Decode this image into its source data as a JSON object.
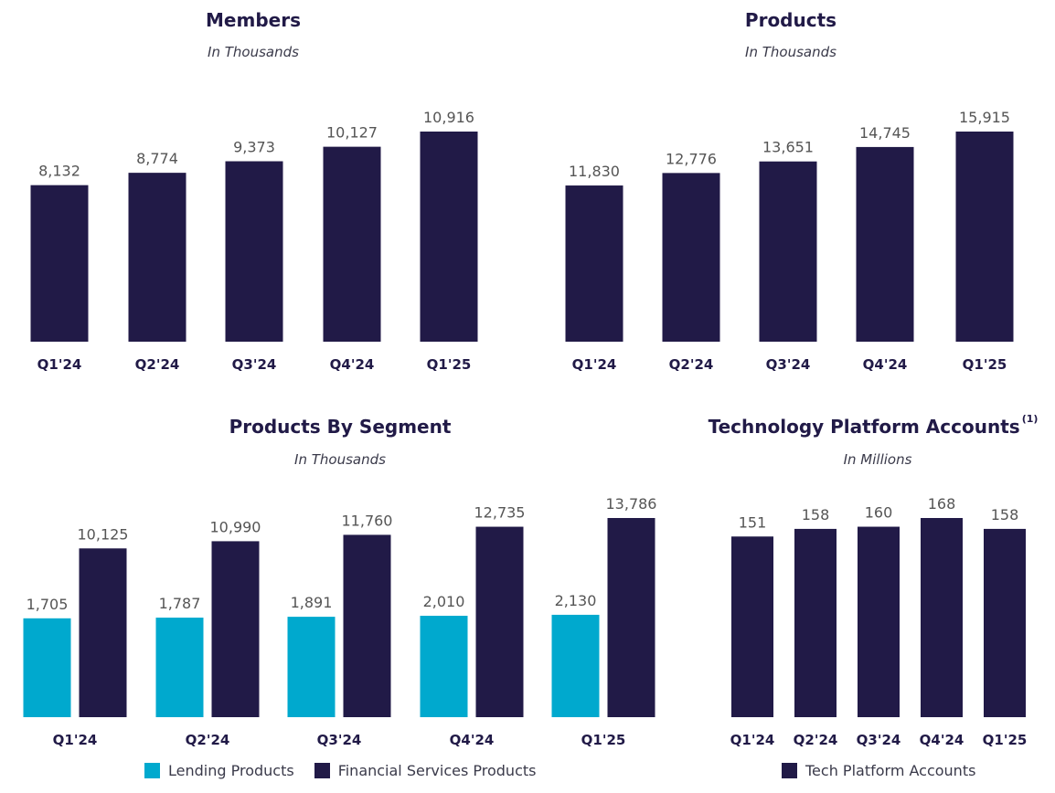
{
  "colors": {
    "navy": "#211A47",
    "teal": "#00A9CE",
    "label": "#555555",
    "axis": "#211A47"
  },
  "chart_data": [
    {
      "id": "members",
      "type": "bar",
      "title": "Members",
      "subtitle": "In Thousands",
      "categories": [
        "Q1'24",
        "Q2'24",
        "Q3'24",
        "Q4'24",
        "Q1'25"
      ],
      "series": [
        {
          "name": "Members",
          "color": "#211A47",
          "values": [
            8132,
            8774,
            9373,
            10127,
            10916
          ],
          "labels": [
            "8,132",
            "8,774",
            "9,373",
            "10,127",
            "10,916"
          ]
        }
      ],
      "xlabel": "",
      "ylabel": "",
      "legend": "none"
    },
    {
      "id": "products",
      "type": "bar",
      "title": "Products",
      "subtitle": "In Thousands",
      "categories": [
        "Q1'24",
        "Q2'24",
        "Q3'24",
        "Q4'24",
        "Q1'25"
      ],
      "series": [
        {
          "name": "Products",
          "color": "#211A47",
          "values": [
            11830,
            12776,
            13651,
            14745,
            15915
          ],
          "labels": [
            "11,830",
            "12,776",
            "13,651",
            "14,745",
            "15,915"
          ]
        }
      ],
      "xlabel": "",
      "ylabel": "",
      "legend": "none"
    },
    {
      "id": "segment",
      "type": "bar",
      "title": "Products By Segment",
      "subtitle": "In Thousands",
      "categories": [
        "Q1'24",
        "Q2'24",
        "Q3'24",
        "Q4'24",
        "Q1'25"
      ],
      "series": [
        {
          "name": "Lending Products",
          "color": "#00A9CE",
          "values": [
            1705,
            1787,
            1891,
            2010,
            2130
          ],
          "labels": [
            "1,705",
            "1,787",
            "1,891",
            "2,010",
            "2,130"
          ]
        },
        {
          "name": "Financial Services Products",
          "color": "#211A47",
          "values": [
            10125,
            10990,
            11760,
            12735,
            13786
          ],
          "labels": [
            "10,125",
            "10,990",
            "11,760",
            "12,735",
            "13,786"
          ]
        }
      ],
      "xlabel": "",
      "ylabel": "",
      "legend": "bottom"
    },
    {
      "id": "tech",
      "type": "bar",
      "title": "Technology Platform Accounts",
      "title_footnote": "(1)",
      "subtitle": "In Millions",
      "categories": [
        "Q1'24",
        "Q2'24",
        "Q3'24",
        "Q4'24",
        "Q1'25"
      ],
      "series": [
        {
          "name": "Tech Platform Accounts",
          "color": "#211A47",
          "values": [
            151,
            158,
            160,
            168,
            158
          ],
          "labels": [
            "151",
            "158",
            "160",
            "168",
            "158"
          ]
        }
      ],
      "xlabel": "",
      "ylabel": "",
      "legend": "bottom"
    }
  ]
}
